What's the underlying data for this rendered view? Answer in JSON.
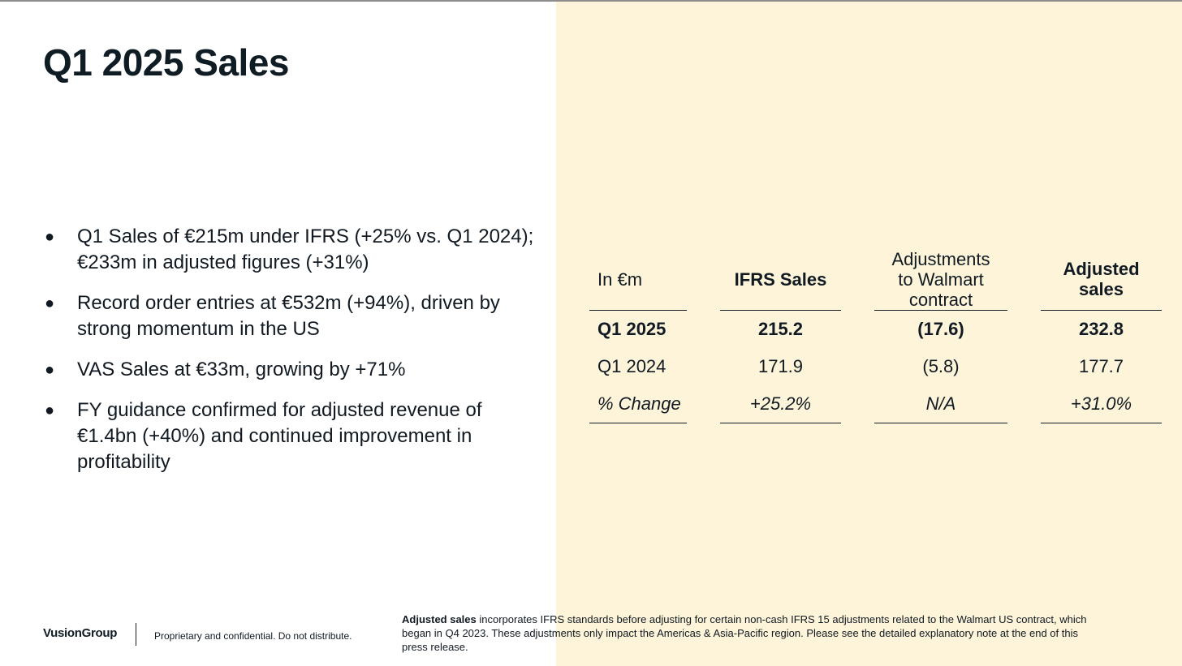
{
  "title": "Q1 2025 Sales",
  "bullets": [
    {
      "line1": "Q1 Sales of €215m under IFRS (+25% vs. Q1 2024);",
      "line2": "€233m in adjusted figures (+31%)",
      "line3": ""
    },
    {
      "line1": "Record order entries at €532m (+94%), driven by",
      "line2": "strong momentum in the US",
      "line3": ""
    },
    {
      "line1": "VAS Sales at €33m, growing by +71%",
      "line2": "",
      "line3": ""
    },
    {
      "line1": "FY guidance confirmed for adjusted revenue of",
      "line2": "€1.4bn (+40%) and continued improvement in",
      "line3": "profitability"
    }
  ],
  "table": {
    "headers": {
      "col0": "In €m",
      "col1": "IFRS Sales",
      "col2_line1": "Adjustments",
      "col2_line2": "to Walmart",
      "col2_line3": "contract",
      "col3_line1": "Adjusted",
      "col3_line2": "sales"
    },
    "rows": [
      {
        "label": "Q1 2025",
        "ifrs": "215.2",
        "adj": "(17.6)",
        "adjusted": "232.8"
      },
      {
        "label": "Q1 2024",
        "ifrs": "171.9",
        "adj": "(5.8)",
        "adjusted": "177.7"
      },
      {
        "label": "% Change",
        "ifrs": "+25.2%",
        "adj": "N/A",
        "adjusted": "+31.0%"
      }
    ]
  },
  "footer": {
    "logo": "VusionGroup",
    "confidential": "Proprietary and confidential. Do not distribute.",
    "footnote_bold": "Adjusted sales",
    "footnote_text": " incorporates IFRS standards before adjusting for certain non-cash IFRS 15 adjustments related to the Walmart US contract, which began in Q4 2023. These adjustments only impact the Americas & Asia-Pacific region. Please see the detailed explanatory note at the end of this press release."
  },
  "colors": {
    "panel": "#fdf4d9",
    "text": "#111a22"
  }
}
